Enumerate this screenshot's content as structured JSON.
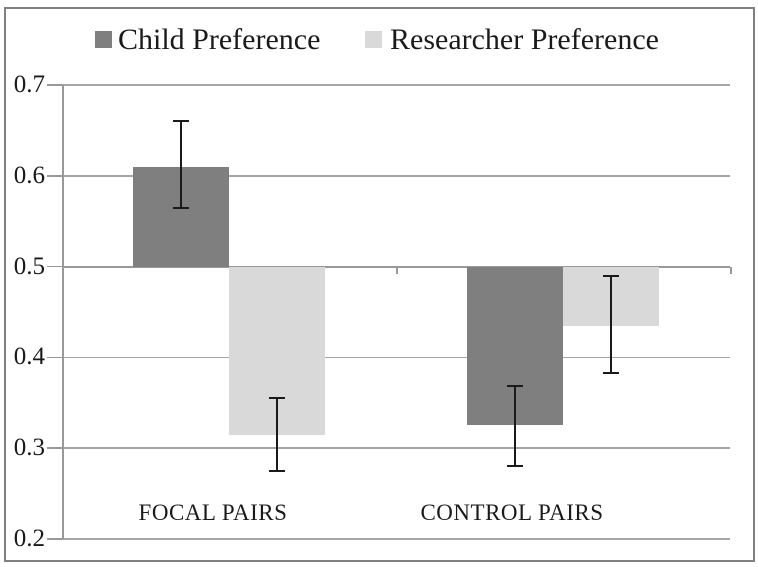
{
  "chart_data": {
    "type": "bar",
    "title": "",
    "categories": [
      "FOCAL PAIRS",
      "CONTROL PAIRS"
    ],
    "series": [
      {
        "name": "Child Preference",
        "color": "#7f7f7f",
        "values": [
          0.61,
          0.325
        ],
        "error_ranges": [
          [
            0.565,
            0.66
          ],
          [
            0.28,
            0.368
          ]
        ]
      },
      {
        "name": "Researcher Preference",
        "color": "#d9d9d9",
        "values": [
          0.315,
          0.435
        ],
        "error_ranges": [
          [
            0.275,
            0.355
          ],
          [
            0.383,
            0.49
          ]
        ]
      }
    ],
    "baseline": 0.5,
    "ylim": [
      0.2,
      0.7
    ],
    "yticks": [
      0.7,
      0.6,
      0.5,
      0.4,
      0.3,
      0.2
    ],
    "xlabel": "",
    "ylabel": "",
    "grid": true,
    "legend_position": "top",
    "gridline_color": "#a6a6a6",
    "axis_color": "#999999",
    "border_color": "#808080",
    "error_bar_color": "#1a1a1a",
    "background_color": "#ffffff"
  }
}
